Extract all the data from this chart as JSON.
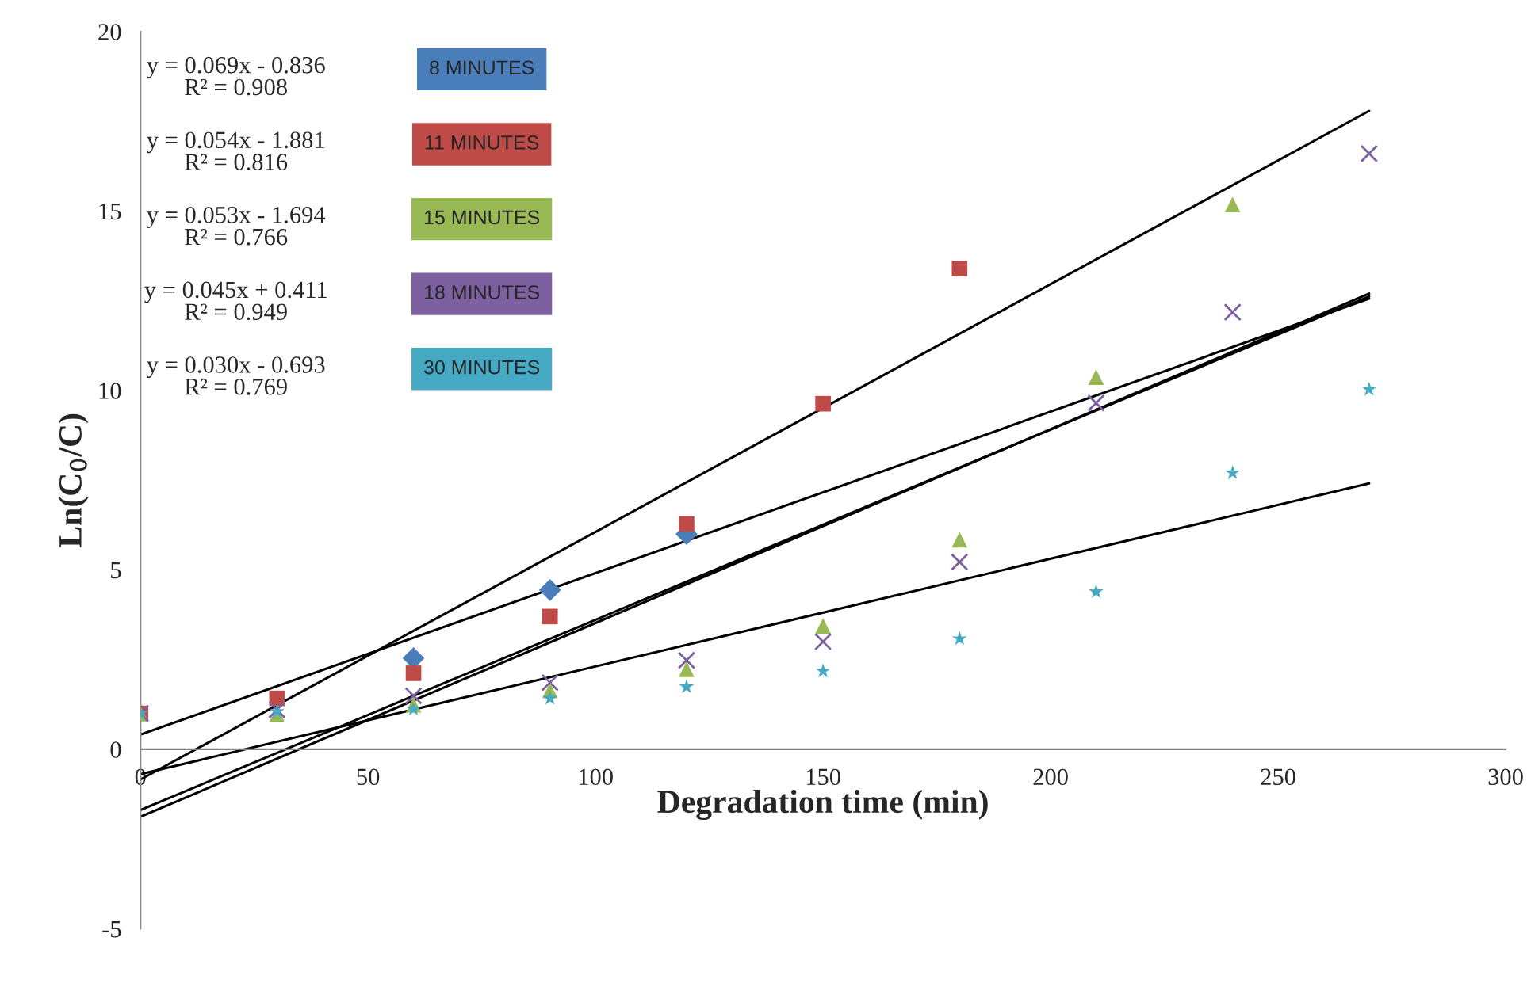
{
  "chart_data": {
    "type": "scatter",
    "xlabel": "Degradation time (min)",
    "ylabel": "Ln(C$_{0}$/C)",
    "xlim": [
      0,
      300
    ],
    "xticks": [
      0,
      50,
      100,
      150,
      200,
      250,
      300
    ],
    "ylim": [
      -5,
      20
    ],
    "yticks": [
      -5,
      0,
      5,
      10,
      15,
      20
    ],
    "grid": false,
    "legend": "top left",
    "annotations": [
      "y = 0.069x - 0.836\nR² = 0.908",
      "y = 0.054x - 1.881\nR² = 0.816",
      "y = 0.053x - 1.694\nR² = 0.766",
      "y = 0.045x + 0.411\nR² = 0.949",
      "y = 0.030x - 0.693\nR² = 0.769"
    ],
    "series": [
      {
        "name": "8 MINUTES",
        "color": "#4a7ebb",
        "marker": "diamond",
        "x": [
          60,
          90,
          120
        ],
        "values": [
          2.54,
          4.44,
          6.0
        ]
      },
      {
        "name": "11 MINUTES",
        "color": "#be4b48",
        "marker": "square",
        "x": [
          0,
          30,
          60,
          90,
          120,
          150,
          180
        ],
        "values": [
          1.0,
          1.42,
          2.12,
          3.7,
          6.28,
          9.63,
          13.4
        ]
      },
      {
        "name": "15 MINUTES",
        "color": "#98b954",
        "marker": "triangle",
        "x": [
          0,
          30,
          60,
          90,
          120,
          150,
          180,
          210,
          240
        ],
        "values": [
          1.0,
          0.97,
          1.24,
          1.64,
          2.23,
          3.44,
          5.84,
          10.37,
          15.18
        ]
      },
      {
        "name": "18 MINUTES",
        "color": "#7d60a0",
        "marker": "cross",
        "x": [
          0,
          30,
          60,
          90,
          120,
          150,
          180,
          210,
          240,
          270
        ],
        "values": [
          1.0,
          1.1,
          1.49,
          1.86,
          2.48,
          3.0,
          5.22,
          9.65,
          12.18,
          16.6
        ]
      },
      {
        "name": "30 MINUTES",
        "color": "#46aac5",
        "marker": "star",
        "x": [
          0,
          30,
          60,
          90,
          120,
          150,
          180,
          210,
          240,
          270
        ],
        "values": [
          1.0,
          1.05,
          1.12,
          1.42,
          1.74,
          2.18,
          3.08,
          4.39,
          7.7,
          10.03
        ]
      },
      {
        "type": "line",
        "color": "#000000",
        "marker": "none",
        "x": [
          0,
          270
        ],
        "values": [
          -0.84,
          17.79
        ]
      },
      {
        "type": "line",
        "color": "#000000",
        "marker": "none",
        "x": [
          0,
          270
        ],
        "values": [
          -1.88,
          12.7
        ]
      },
      {
        "type": "line",
        "color": "#000000",
        "marker": "none",
        "x": [
          0,
          270
        ],
        "values": [
          -1.69,
          12.62
        ]
      },
      {
        "type": "line",
        "color": "#000000",
        "marker": "none",
        "x": [
          0,
          270
        ],
        "values": [
          0.41,
          12.56
        ]
      },
      {
        "type": "line",
        "color": "#000000",
        "marker": "none",
        "x": [
          0,
          270
        ],
        "values": [
          -0.69,
          7.41
        ]
      }
    ]
  }
}
